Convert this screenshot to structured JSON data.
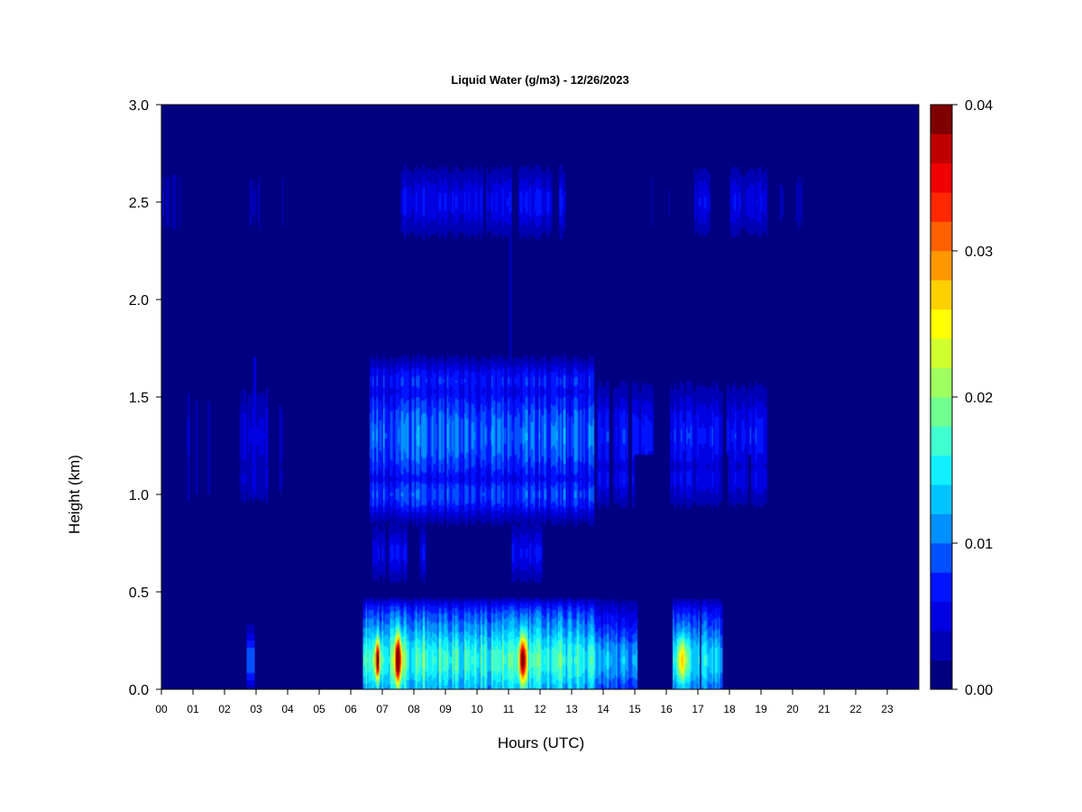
{
  "chart_data": {
    "type": "heatmap",
    "title": "Liquid Water (g/m3) - 12/26/2023",
    "xlabel": "Hours (UTC)",
    "ylabel": "Height (km)",
    "xlim": [
      0,
      24
    ],
    "ylim": [
      0,
      3
    ],
    "x_ticks": [
      "00",
      "01",
      "02",
      "03",
      "04",
      "05",
      "06",
      "07",
      "08",
      "09",
      "10",
      "11",
      "12",
      "13",
      "14",
      "15",
      "16",
      "17",
      "18",
      "19",
      "20",
      "21",
      "22",
      "23"
    ],
    "y_ticks": [
      "0.0",
      "0.5",
      "1.0",
      "1.5",
      "2.0",
      "2.5",
      "3.0"
    ],
    "colorbar": {
      "range": [
        0,
        0.04
      ],
      "ticks": [
        "0.00",
        "0.01",
        "0.02",
        "0.03",
        "0.04"
      ],
      "levels": [
        "#000080",
        "#0000b4",
        "#0000e0",
        "#0014ff",
        "#0050ff",
        "#0090ff",
        "#00c4ff",
        "#10f0ff",
        "#40ffd0",
        "#70ff90",
        "#a0ff60",
        "#d0ff30",
        "#ffff00",
        "#ffd000",
        "#ff9800",
        "#ff6000",
        "#ff2800",
        "#f00000",
        "#c00000",
        "#800000"
      ]
    },
    "background_value": 0.0,
    "features": [
      {
        "name": "upper layer 2.3-2.7 km",
        "x_range": [
          0.0,
          20.3
        ],
        "y_range": [
          2.3,
          2.7
        ],
        "peak_value": 0.009
      },
      {
        "name": "middle layer 0.9-1.7 km",
        "x_range": [
          6.6,
          19.2
        ],
        "y_range": [
          0.9,
          1.7
        ],
        "peak_value": 0.015
      },
      {
        "name": "low layer 0.0-0.6 km",
        "x_range": [
          6.4,
          17.8
        ],
        "y_range": [
          0.0,
          0.6
        ],
        "peak_value": 0.036
      },
      {
        "name": "peak near 06:50 UTC",
        "x": 6.85,
        "y": 0.15,
        "value": 0.032
      },
      {
        "name": "peak near 07:30 UTC",
        "x": 7.5,
        "y": 0.15,
        "value": 0.036
      },
      {
        "name": "peak near 11:25 UTC",
        "x": 11.45,
        "y": 0.15,
        "value": 0.034
      }
    ]
  }
}
